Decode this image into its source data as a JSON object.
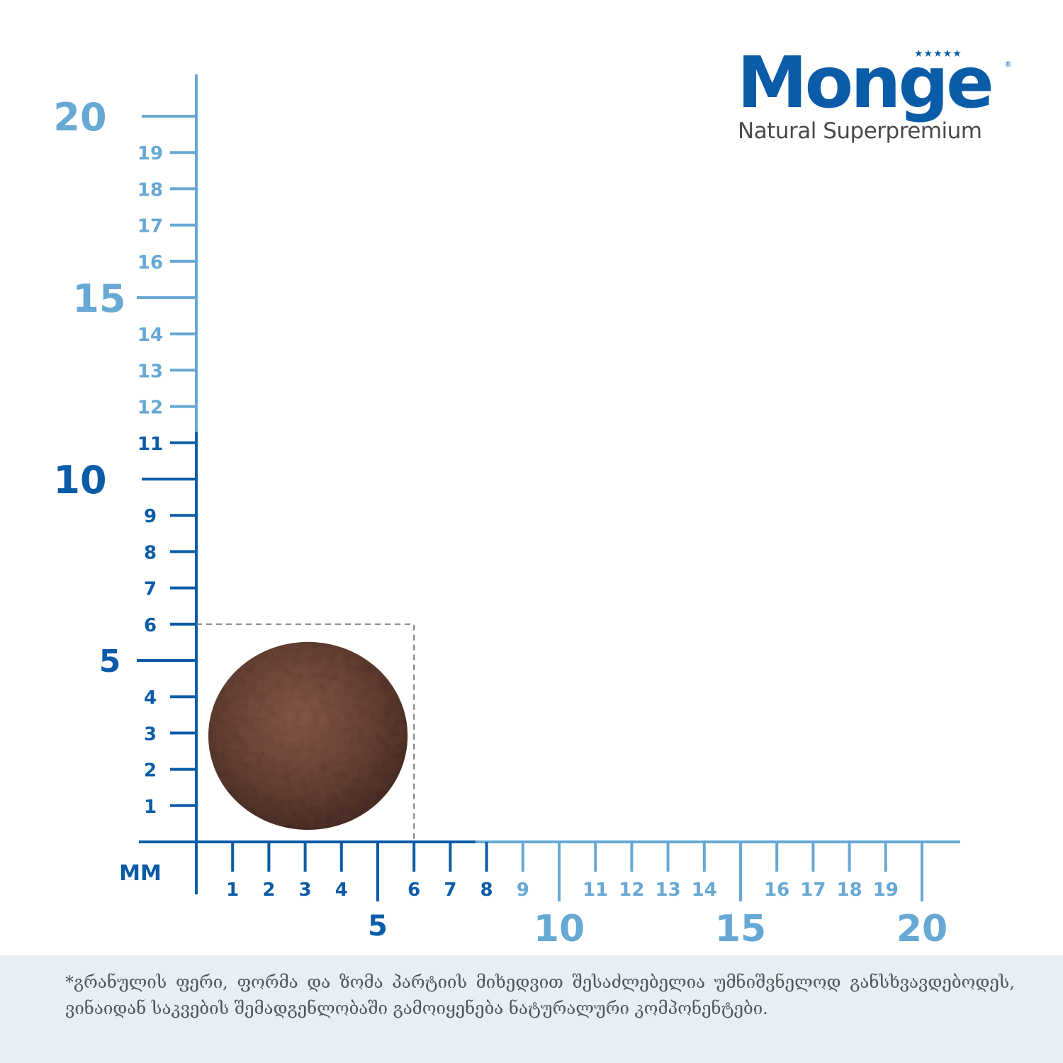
{
  "brand": {
    "name": "Monge",
    "tagline": "Natural Superpremium",
    "stars": "★★★★★",
    "registered": "®"
  },
  "ruler": {
    "unit": "MM",
    "y_major": [
      "5",
      "10",
      "15",
      "20"
    ],
    "y_minor": [
      "1",
      "2",
      "3",
      "4",
      "6",
      "7",
      "8",
      "9",
      "11",
      "12",
      "13",
      "14",
      "16",
      "17",
      "18",
      "19"
    ],
    "x_major": [
      "5",
      "10",
      "15",
      "20"
    ],
    "x_minor": [
      "1",
      "2",
      "3",
      "4",
      "6",
      "7",
      "8",
      "9",
      "11",
      "12",
      "13",
      "14",
      "16",
      "17",
      "18",
      "19"
    ],
    "kibble_size_mm": 6,
    "colors": {
      "dark_blue": "#0b5ca8",
      "light_blue": "#67a8d4",
      "kibble": "#6e4638"
    }
  },
  "note": {
    "text": "*გრანულის ფერი, ფორმა და ზომა პარტიის მიხედვით შესაძლებელია უმნიშვნელოდ განსხვავდებოდეს,  ვინაიდან საკვების შემადგენლობაში გამოიყენება ნატურალური კომპონენტები."
  }
}
